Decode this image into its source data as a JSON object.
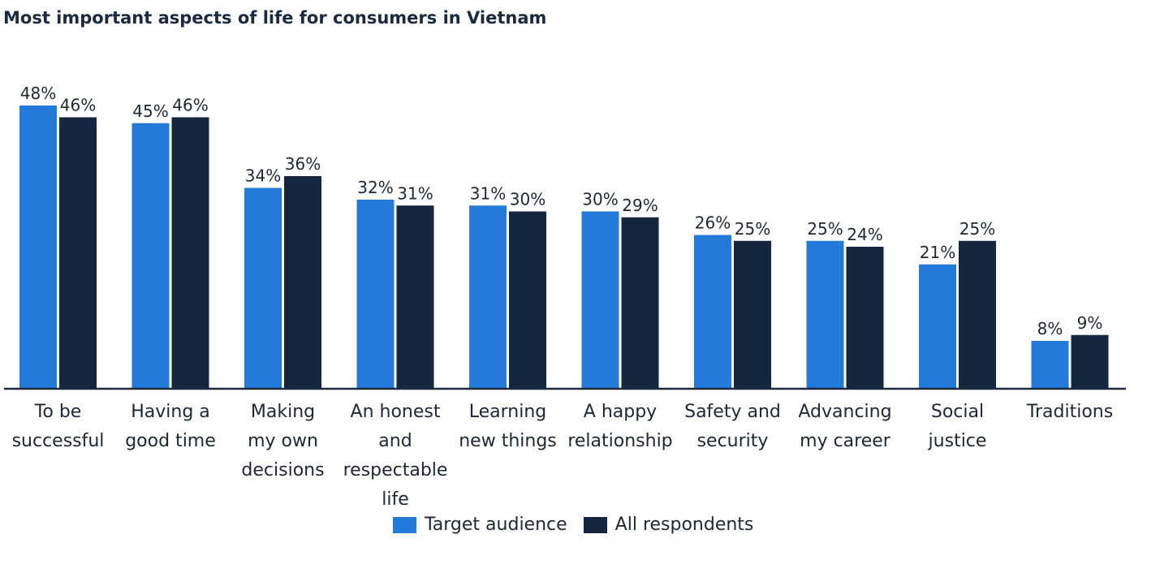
{
  "chart_data": {
    "type": "bar",
    "title": "Most important aspects of life for consumers in Vietnam",
    "categories": [
      [
        "To be",
        "successful"
      ],
      [
        "Having a",
        "good time"
      ],
      [
        "Making",
        "my own",
        "decisions"
      ],
      [
        "An honest",
        "and",
        "respectable",
        "life"
      ],
      [
        "Learning",
        "new things"
      ],
      [
        "A happy",
        "relationship"
      ],
      [
        "Safety and",
        "security"
      ],
      [
        "Advancing",
        "my career"
      ],
      [
        "Social",
        "justice"
      ],
      [
        "Traditions"
      ]
    ],
    "series": [
      {
        "name": "Target audience",
        "color": "#237ad8",
        "values": [
          48,
          45,
          34,
          32,
          31,
          30,
          26,
          25,
          21,
          8
        ]
      },
      {
        "name": "All respondents",
        "color": "#14273f",
        "values": [
          46,
          46,
          36,
          31,
          30,
          29,
          25,
          24,
          25,
          9
        ]
      }
    ],
    "value_suffix": "%",
    "xlabel": "",
    "ylabel": "",
    "ylim": [
      0,
      48
    ],
    "grid": false,
    "legend": "bottom-center"
  }
}
